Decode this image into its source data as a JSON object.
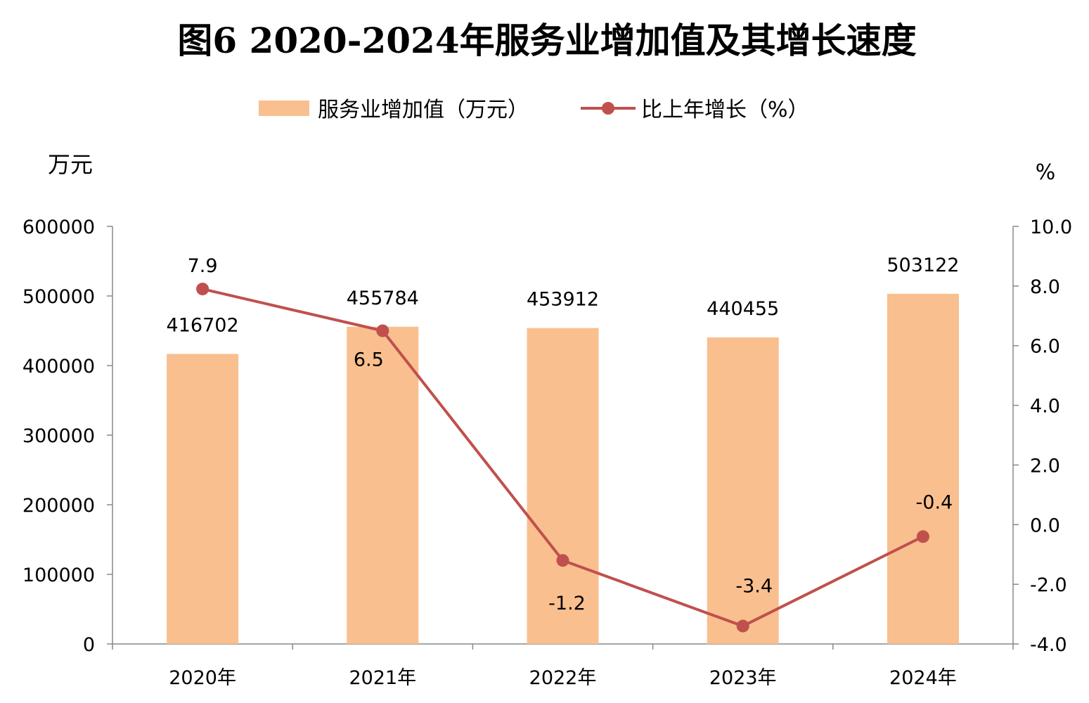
{
  "chart_data": {
    "type": "bar+line",
    "title": "图6  2020-2024年服务业增加值及其增长速度",
    "categories": [
      "2020年",
      "2021年",
      "2022年",
      "2023年",
      "2024年"
    ],
    "series": [
      {
        "name": "服务业增加值（万元）",
        "type": "bar",
        "axis": "left",
        "color": "#F9BF8F",
        "values": [
          416702,
          455784,
          453912,
          440455,
          503122
        ],
        "labels": [
          "416702",
          "455784",
          "453912",
          "440455",
          "503122"
        ]
      },
      {
        "name": "比上年增长（%）",
        "type": "line",
        "axis": "right",
        "color": "#C0504D",
        "values": [
          7.9,
          6.5,
          -1.2,
          -3.4,
          -0.4
        ],
        "labels": [
          "7.9",
          "6.5",
          "-1.2",
          "-3.4",
          "-0.4"
        ]
      }
    ],
    "y_left": {
      "label": "万元",
      "range": [
        0,
        600000
      ],
      "ticks": [
        "0",
        "100000",
        "200000",
        "300000",
        "400000",
        "500000",
        "600000"
      ]
    },
    "y_right": {
      "label": "%",
      "range": [
        -4,
        10
      ],
      "ticks": [
        "-4.0",
        "-2.0",
        "0.0",
        "2.0",
        "4.0",
        "6.0",
        "8.0",
        "10.0"
      ]
    },
    "legend": "top-center",
    "grid": false
  }
}
